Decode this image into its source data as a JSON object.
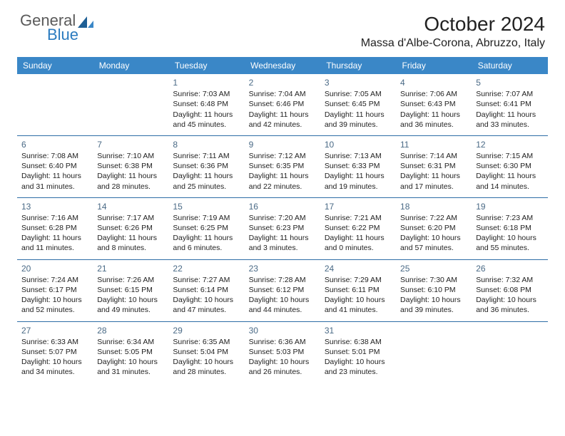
{
  "brand": {
    "word1": "General",
    "word2": "Blue"
  },
  "title": "October 2024",
  "location": "Massa d'Albe-Corona, Abruzzo, Italy",
  "colors": {
    "header_bg": "#3a87c7",
    "header_text": "#ffffff",
    "row_border": "#2d6da6",
    "daynum": "#4a6a86",
    "brand_gray": "#5a5a5a",
    "brand_blue": "#2b7bbf",
    "background": "#ffffff",
    "body_text": "#222222"
  },
  "daysOfWeek": [
    "Sunday",
    "Monday",
    "Tuesday",
    "Wednesday",
    "Thursday",
    "Friday",
    "Saturday"
  ],
  "weeks": [
    [
      null,
      null,
      {
        "n": "1",
        "sr": "Sunrise: 7:03 AM",
        "ss": "Sunset: 6:48 PM",
        "d1": "Daylight: 11 hours",
        "d2": "and 45 minutes."
      },
      {
        "n": "2",
        "sr": "Sunrise: 7:04 AM",
        "ss": "Sunset: 6:46 PM",
        "d1": "Daylight: 11 hours",
        "d2": "and 42 minutes."
      },
      {
        "n": "3",
        "sr": "Sunrise: 7:05 AM",
        "ss": "Sunset: 6:45 PM",
        "d1": "Daylight: 11 hours",
        "d2": "and 39 minutes."
      },
      {
        "n": "4",
        "sr": "Sunrise: 7:06 AM",
        "ss": "Sunset: 6:43 PM",
        "d1": "Daylight: 11 hours",
        "d2": "and 36 minutes."
      },
      {
        "n": "5",
        "sr": "Sunrise: 7:07 AM",
        "ss": "Sunset: 6:41 PM",
        "d1": "Daylight: 11 hours",
        "d2": "and 33 minutes."
      }
    ],
    [
      {
        "n": "6",
        "sr": "Sunrise: 7:08 AM",
        "ss": "Sunset: 6:40 PM",
        "d1": "Daylight: 11 hours",
        "d2": "and 31 minutes."
      },
      {
        "n": "7",
        "sr": "Sunrise: 7:10 AM",
        "ss": "Sunset: 6:38 PM",
        "d1": "Daylight: 11 hours",
        "d2": "and 28 minutes."
      },
      {
        "n": "8",
        "sr": "Sunrise: 7:11 AM",
        "ss": "Sunset: 6:36 PM",
        "d1": "Daylight: 11 hours",
        "d2": "and 25 minutes."
      },
      {
        "n": "9",
        "sr": "Sunrise: 7:12 AM",
        "ss": "Sunset: 6:35 PM",
        "d1": "Daylight: 11 hours",
        "d2": "and 22 minutes."
      },
      {
        "n": "10",
        "sr": "Sunrise: 7:13 AM",
        "ss": "Sunset: 6:33 PM",
        "d1": "Daylight: 11 hours",
        "d2": "and 19 minutes."
      },
      {
        "n": "11",
        "sr": "Sunrise: 7:14 AM",
        "ss": "Sunset: 6:31 PM",
        "d1": "Daylight: 11 hours",
        "d2": "and 17 minutes."
      },
      {
        "n": "12",
        "sr": "Sunrise: 7:15 AM",
        "ss": "Sunset: 6:30 PM",
        "d1": "Daylight: 11 hours",
        "d2": "and 14 minutes."
      }
    ],
    [
      {
        "n": "13",
        "sr": "Sunrise: 7:16 AM",
        "ss": "Sunset: 6:28 PM",
        "d1": "Daylight: 11 hours",
        "d2": "and 11 minutes."
      },
      {
        "n": "14",
        "sr": "Sunrise: 7:17 AM",
        "ss": "Sunset: 6:26 PM",
        "d1": "Daylight: 11 hours",
        "d2": "and 8 minutes."
      },
      {
        "n": "15",
        "sr": "Sunrise: 7:19 AM",
        "ss": "Sunset: 6:25 PM",
        "d1": "Daylight: 11 hours",
        "d2": "and 6 minutes."
      },
      {
        "n": "16",
        "sr": "Sunrise: 7:20 AM",
        "ss": "Sunset: 6:23 PM",
        "d1": "Daylight: 11 hours",
        "d2": "and 3 minutes."
      },
      {
        "n": "17",
        "sr": "Sunrise: 7:21 AM",
        "ss": "Sunset: 6:22 PM",
        "d1": "Daylight: 11 hours",
        "d2": "and 0 minutes."
      },
      {
        "n": "18",
        "sr": "Sunrise: 7:22 AM",
        "ss": "Sunset: 6:20 PM",
        "d1": "Daylight: 10 hours",
        "d2": "and 57 minutes."
      },
      {
        "n": "19",
        "sr": "Sunrise: 7:23 AM",
        "ss": "Sunset: 6:18 PM",
        "d1": "Daylight: 10 hours",
        "d2": "and 55 minutes."
      }
    ],
    [
      {
        "n": "20",
        "sr": "Sunrise: 7:24 AM",
        "ss": "Sunset: 6:17 PM",
        "d1": "Daylight: 10 hours",
        "d2": "and 52 minutes."
      },
      {
        "n": "21",
        "sr": "Sunrise: 7:26 AM",
        "ss": "Sunset: 6:15 PM",
        "d1": "Daylight: 10 hours",
        "d2": "and 49 minutes."
      },
      {
        "n": "22",
        "sr": "Sunrise: 7:27 AM",
        "ss": "Sunset: 6:14 PM",
        "d1": "Daylight: 10 hours",
        "d2": "and 47 minutes."
      },
      {
        "n": "23",
        "sr": "Sunrise: 7:28 AM",
        "ss": "Sunset: 6:12 PM",
        "d1": "Daylight: 10 hours",
        "d2": "and 44 minutes."
      },
      {
        "n": "24",
        "sr": "Sunrise: 7:29 AM",
        "ss": "Sunset: 6:11 PM",
        "d1": "Daylight: 10 hours",
        "d2": "and 41 minutes."
      },
      {
        "n": "25",
        "sr": "Sunrise: 7:30 AM",
        "ss": "Sunset: 6:10 PM",
        "d1": "Daylight: 10 hours",
        "d2": "and 39 minutes."
      },
      {
        "n": "26",
        "sr": "Sunrise: 7:32 AM",
        "ss": "Sunset: 6:08 PM",
        "d1": "Daylight: 10 hours",
        "d2": "and 36 minutes."
      }
    ],
    [
      {
        "n": "27",
        "sr": "Sunrise: 6:33 AM",
        "ss": "Sunset: 5:07 PM",
        "d1": "Daylight: 10 hours",
        "d2": "and 34 minutes."
      },
      {
        "n": "28",
        "sr": "Sunrise: 6:34 AM",
        "ss": "Sunset: 5:05 PM",
        "d1": "Daylight: 10 hours",
        "d2": "and 31 minutes."
      },
      {
        "n": "29",
        "sr": "Sunrise: 6:35 AM",
        "ss": "Sunset: 5:04 PM",
        "d1": "Daylight: 10 hours",
        "d2": "and 28 minutes."
      },
      {
        "n": "30",
        "sr": "Sunrise: 6:36 AM",
        "ss": "Sunset: 5:03 PM",
        "d1": "Daylight: 10 hours",
        "d2": "and 26 minutes."
      },
      {
        "n": "31",
        "sr": "Sunrise: 6:38 AM",
        "ss": "Sunset: 5:01 PM",
        "d1": "Daylight: 10 hours",
        "d2": "and 23 minutes."
      },
      null,
      null
    ]
  ]
}
